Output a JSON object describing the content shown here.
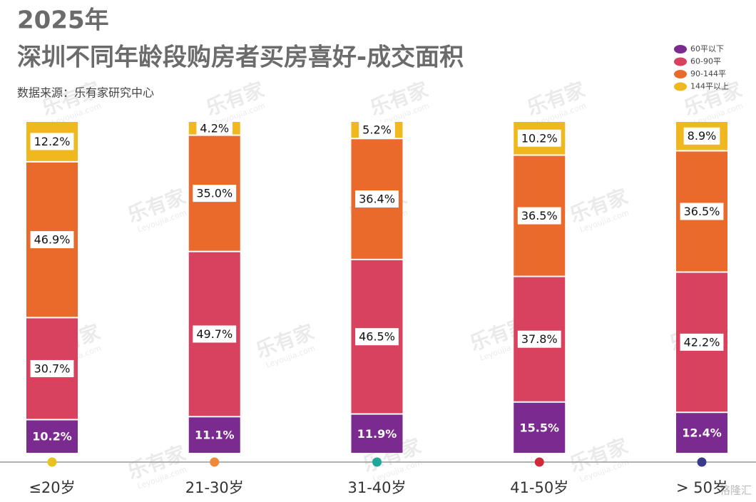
{
  "chart_data": {
    "type": "stacked-bar",
    "title": "2025年",
    "subtitle": "深圳不同年龄段购房者买房喜好-成交面积",
    "source": "数据来源：乐有家研究中心",
    "watermark": [
      "乐有家",
      "Leyoujia.com"
    ],
    "credit": "格隆汇",
    "categories": [
      "≤20岁",
      "21-30岁",
      "31-40岁",
      "41-50岁",
      "> 50岁"
    ],
    "category_colors": [
      "#e8c21e",
      "#ec8a3a",
      "#1fa89a",
      "#cf2a3a",
      "#3a3a8a"
    ],
    "ylim": [
      0,
      100
    ],
    "series": [
      {
        "name": "60平以下",
        "color": "#7b2b8f",
        "values": [
          10.2,
          11.1,
          11.9,
          15.5,
          12.4
        ],
        "value_labels": [
          "10.2%",
          "11.1%",
          "11.9%",
          "15.5%",
          "12.4%"
        ]
      },
      {
        "name": "60-90平",
        "color": "#d9425f",
        "values": [
          30.7,
          49.7,
          46.5,
          37.8,
          42.2
        ],
        "value_labels": [
          "30.7%",
          "49.7%",
          "46.5%",
          "37.8%",
          "42.2%"
        ]
      },
      {
        "name": "90-144平",
        "color": "#ea6a2c",
        "values": [
          46.9,
          35.0,
          36.4,
          36.5,
          36.5
        ],
        "value_labels": [
          "46.9%",
          "35.0%",
          "36.4%",
          "36.5%",
          "36.5%"
        ]
      },
      {
        "name": "144平以上",
        "color": "#efb81f",
        "values": [
          12.2,
          4.2,
          5.2,
          10.2,
          8.9
        ],
        "value_labels": [
          "12.2%",
          "4.2%",
          "5.2%",
          "10.2%",
          "8.9%"
        ]
      }
    ],
    "legend": "top-right"
  }
}
